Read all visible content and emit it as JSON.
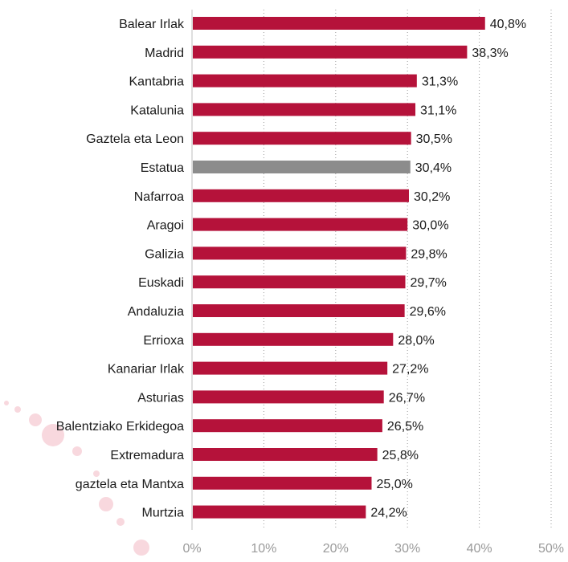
{
  "chart_data": {
    "type": "bar",
    "orientation": "horizontal",
    "categories": [
      "Balear Irlak",
      "Madrid",
      "Kantabria",
      "Katalunia",
      "Gaztela eta Leon",
      "Estatua",
      "Nafarroa",
      "Aragoi",
      "Galizia",
      "Euskadi",
      "Andaluzia",
      "Errioxa",
      "Kanariar Irlak",
      "Asturias",
      "Balentziako Erkidegoa",
      "Extremadura",
      "gaztela eta Mantxa",
      "Murtzia"
    ],
    "values": [
      40.8,
      38.3,
      31.3,
      31.1,
      30.5,
      30.4,
      30.2,
      30.0,
      29.8,
      29.7,
      29.6,
      28.0,
      27.2,
      26.7,
      26.5,
      25.8,
      25.0,
      24.2
    ],
    "value_labels": [
      "40,8%",
      "38,3%",
      "31,3%",
      "31,1%",
      "30,5%",
      "30,4%",
      "30,2%",
      "30,0%",
      "29,8%",
      "29,7%",
      "29,6%",
      "28,0%",
      "27,2%",
      "26,7%",
      "26,5%",
      "25,8%",
      "25,0%",
      "24,2%"
    ],
    "highlight_category": "Estatua",
    "xlim": [
      0,
      50
    ],
    "x_ticks": [
      0,
      10,
      20,
      30,
      40,
      50
    ],
    "x_tick_labels": [
      "0%",
      "10%",
      "20%",
      "30%",
      "40%",
      "50%"
    ],
    "grid": "vertical dotted",
    "legend": "none",
    "colors": {
      "bar": "#b5123a",
      "highlight": "#8c8c8c",
      "grid": "#9a9a9a",
      "tick_text": "#9a9a9a",
      "text": "#1a1a1a",
      "decoration": "#f0a8b6"
    }
  }
}
